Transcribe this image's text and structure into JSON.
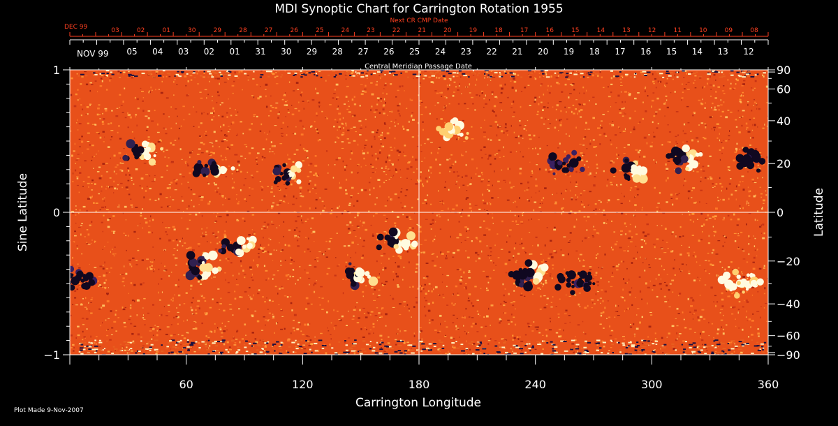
{
  "chart_data": {
    "type": "heatmap",
    "title": "MDI Synoptic Chart for Carrington Rotation 1955",
    "xlabel": "Carrington Longitude",
    "ylabel_left": "Sine Latitude",
    "ylabel_right": "Latitude",
    "xlim": [
      0,
      360
    ],
    "ylim": [
      -1,
      1
    ],
    "x_ticks": [
      60,
      120,
      180,
      240,
      300,
      360
    ],
    "y_ticks_left": [
      "1",
      "0",
      "−1"
    ],
    "y_ticks_left_values": [
      1,
      0,
      -1
    ],
    "y_ticks_right": [
      90,
      60,
      40,
      20,
      0,
      -20,
      -40,
      -60,
      -90
    ],
    "next_cr_label": "Next CR CMP Date",
    "next_cr_month": "DEC 99",
    "next_cr_dates": [
      "03",
      "02",
      "01",
      "30",
      "29",
      "28",
      "27",
      "26",
      "25",
      "24",
      "23",
      "22",
      "21",
      "20",
      "19",
      "18",
      "17",
      "16",
      "15",
      "14",
      "13",
      "12",
      "11",
      "10",
      "09",
      "08"
    ],
    "cmp_label": "Central Meridian Passage Date",
    "cmp_month": "NOV 99",
    "cmp_dates": [
      "05",
      "04",
      "03",
      "02",
      "01",
      "31",
      "30",
      "29",
      "28",
      "27",
      "26",
      "25",
      "24",
      "23",
      "22",
      "21",
      "20",
      "19",
      "18",
      "17",
      "16",
      "15",
      "14",
      "13",
      "12"
    ],
    "footer": "Plot Made  9-Nov-2007",
    "colors": {
      "background": "#000000",
      "field_base": "#e8501a",
      "positive": "#fffbe0",
      "negative": "#100820",
      "top_scale": "#ff4020",
      "grid": "#ffffff"
    },
    "regions": [
      {
        "lon": 37,
        "lat": 25,
        "polarity": "mixed"
      },
      {
        "lon": 75,
        "lat": 18,
        "polarity": "mixed"
      },
      {
        "lon": 113,
        "lat": 15,
        "polarity": "mixed"
      },
      {
        "lon": 197,
        "lat": 35,
        "polarity": "positive"
      },
      {
        "lon": 255,
        "lat": 20,
        "polarity": "negative"
      },
      {
        "lon": 290,
        "lat": 17,
        "polarity": "mixed"
      },
      {
        "lon": 317,
        "lat": 22,
        "polarity": "mixed"
      },
      {
        "lon": 354,
        "lat": 22,
        "polarity": "negative"
      },
      {
        "lon": 2,
        "lat": -28,
        "polarity": "negative"
      },
      {
        "lon": 68,
        "lat": -22,
        "polarity": "mixed"
      },
      {
        "lon": 87,
        "lat": -15,
        "polarity": "mixed"
      },
      {
        "lon": 148,
        "lat": -26,
        "polarity": "mixed"
      },
      {
        "lon": 168,
        "lat": -12,
        "polarity": "mixed"
      },
      {
        "lon": 238,
        "lat": -26,
        "polarity": "mixed"
      },
      {
        "lon": 262,
        "lat": -30,
        "polarity": "negative"
      },
      {
        "lon": 345,
        "lat": -30,
        "polarity": "positive"
      }
    ]
  }
}
